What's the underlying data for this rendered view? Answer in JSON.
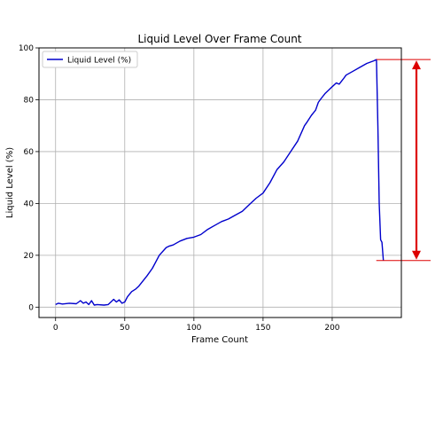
{
  "chart_data": {
    "type": "line",
    "title": "Liquid Level Over Frame Count",
    "xlabel": "Frame Count",
    "ylabel": "Liquid Level (%)",
    "xlim": [
      -12,
      250
    ],
    "ylim": [
      -4,
      100
    ],
    "xticks": [
      0,
      50,
      100,
      150,
      200
    ],
    "yticks": [
      0,
      20,
      40,
      60,
      80,
      100
    ],
    "grid": true,
    "legend_position": "upper-left",
    "series": [
      {
        "name": "Liquid Level (%)",
        "color": "#0000cc",
        "x": [
          0,
          2,
          5,
          10,
          15,
          18,
          20,
          22,
          24,
          26,
          28,
          30,
          35,
          38,
          40,
          42,
          44,
          46,
          48,
          50,
          52,
          55,
          58,
          60,
          63,
          66,
          70,
          75,
          80,
          82,
          85,
          90,
          95,
          100,
          105,
          110,
          115,
          120,
          125,
          130,
          135,
          140,
          145,
          150,
          155,
          160,
          165,
          170,
          175,
          180,
          182,
          185,
          188,
          190,
          192,
          195,
          198,
          200,
          203,
          205,
          208,
          210,
          215,
          220,
          225,
          230,
          232,
          233,
          234,
          235,
          236,
          237
        ],
        "y": [
          1,
          1.5,
          1.2,
          1.5,
          1.3,
          2.5,
          1.5,
          2,
          1,
          2.5,
          0.8,
          1,
          0.8,
          1,
          2,
          3,
          2,
          2.8,
          1.5,
          2,
          4,
          6,
          7,
          8,
          10,
          12,
          15,
          20,
          23,
          23.5,
          24,
          25.5,
          26.5,
          27,
          28,
          30,
          31.5,
          33,
          34,
          35.5,
          37,
          39.5,
          42,
          44,
          48,
          53,
          56,
          60,
          64,
          70,
          71.5,
          74,
          76,
          79,
          80.5,
          82.5,
          84,
          85,
          86.5,
          86,
          88,
          89.5,
          91,
          92.5,
          94,
          95,
          95.5,
          70,
          40,
          26,
          25,
          18
        ]
      }
    ],
    "annotation": {
      "type": "double-arrow",
      "top_value": 95.5,
      "bottom_value": 18,
      "color": "#dd0000"
    }
  }
}
